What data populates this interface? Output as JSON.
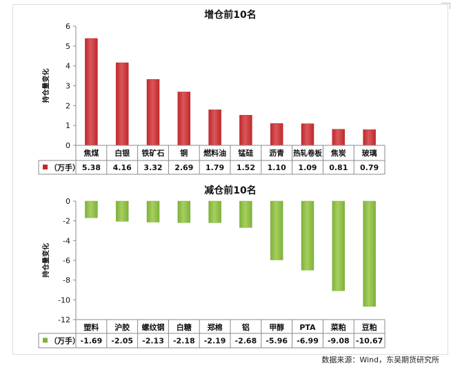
{
  "charts": [
    {
      "id": "increase",
      "title": "增仓前10名",
      "ylabel": "持仓量变化",
      "legend_label": "（万手）",
      "color": "#c0282c",
      "color_light": "#d9575a",
      "yticks": [
        "6",
        "5",
        "4",
        "3",
        "2",
        "1",
        "0"
      ],
      "values_text": [
        "5.38",
        "4.16",
        "3.32",
        "2.69",
        "1.79",
        "1.52",
        "1.10",
        "1.09",
        "0.81",
        "0.79"
      ]
    },
    {
      "id": "decrease",
      "title": "减仓前10名",
      "ylabel": "持仓量变化",
      "legend_label": "（万手）",
      "color": "#7fb13a",
      "color_light": "#a6cf5e",
      "yticks": [
        "0",
        "-2",
        "-4",
        "-6",
        "-8",
        "-10",
        "-12"
      ],
      "values_text": [
        "-1.69",
        "-2.05",
        "-2.13",
        "-2.18",
        "-2.19",
        "-2.68",
        "-5.96",
        "-6.99",
        "-9.08",
        "-10.67"
      ]
    }
  ],
  "chart_data": [
    {
      "type": "bar",
      "title": "增仓前10名",
      "xlabel": "",
      "ylabel": "持仓量变化",
      "categories": [
        "焦煤",
        "白银",
        "铁矿石",
        "铜",
        "燃料油",
        "锰硅",
        "沥青",
        "热轧卷板",
        "焦炭",
        "玻璃"
      ],
      "series": [
        {
          "name": "（万手）",
          "values": [
            5.38,
            4.16,
            3.32,
            2.69,
            1.79,
            1.52,
            1.1,
            1.09,
            0.81,
            0.79
          ]
        }
      ],
      "ylim": [
        0,
        6
      ],
      "grid": false,
      "legend": "data-table"
    },
    {
      "type": "bar",
      "title": "减仓前10名",
      "xlabel": "",
      "ylabel": "持仓量变化",
      "categories": [
        "塑料",
        "沪胶",
        "螺纹钢",
        "白糖",
        "郑棉",
        "铝",
        "甲醇",
        "PTA",
        "菜粕",
        "豆粕"
      ],
      "series": [
        {
          "name": "（万手）",
          "values": [
            -1.69,
            -2.05,
            -2.13,
            -2.18,
            -2.19,
            -2.68,
            -5.96,
            -6.99,
            -9.08,
            -10.67
          ]
        }
      ],
      "ylim": [
        -12,
        0
      ],
      "grid": false,
      "legend": "data-table"
    }
  ],
  "source_note": "数据来源：Wind，东吴期货研究所"
}
